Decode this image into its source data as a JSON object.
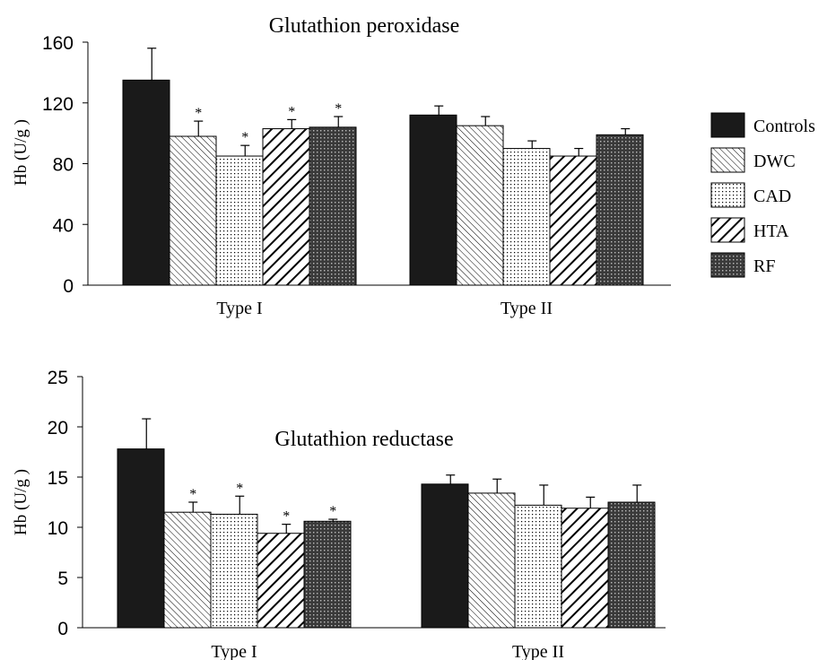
{
  "legend": {
    "items": [
      {
        "name": "Controls",
        "pattern": "solid"
      },
      {
        "name": "DWC",
        "pattern": "diag-fine-right"
      },
      {
        "name": "CAD",
        "pattern": "dots"
      },
      {
        "name": "HTA",
        "pattern": "diag-bold-left"
      },
      {
        "name": "RF",
        "pattern": "crosshatch"
      }
    ]
  },
  "colors": {
    "ink": "#000000",
    "dark_bar": "#1a1a1a",
    "background": "#ffffff"
  },
  "chart_data": [
    {
      "type": "bar",
      "title": "Glutathion peroxidase",
      "ylabel": "Hb (U/g )",
      "xlabel": "",
      "categories": [
        "Type I",
        "Type II"
      ],
      "ylim": [
        0,
        160
      ],
      "yticks": [
        "0",
        "40",
        "80",
        "120",
        "160"
      ],
      "grid": false,
      "legend_position": "right",
      "series": [
        {
          "name": "Controls",
          "values": [
            135,
            112
          ],
          "errors": [
            21,
            6
          ],
          "significant": [
            false,
            false
          ]
        },
        {
          "name": "DWC",
          "values": [
            98,
            105
          ],
          "errors": [
            10,
            6
          ],
          "significant": [
            true,
            false
          ]
        },
        {
          "name": "CAD",
          "values": [
            85,
            90
          ],
          "errors": [
            7,
            5
          ],
          "significant": [
            true,
            false
          ]
        },
        {
          "name": "HTA",
          "values": [
            103,
            85
          ],
          "errors": [
            6,
            5
          ],
          "significant": [
            true,
            false
          ]
        },
        {
          "name": "RF",
          "values": [
            104,
            99
          ],
          "errors": [
            7,
            4
          ],
          "significant": [
            true,
            false
          ]
        }
      ],
      "annotation_symbol": "*"
    },
    {
      "type": "bar",
      "title": "Glutathion reductase",
      "ylabel": "Hb (U/g )",
      "xlabel": "",
      "categories": [
        "Type I",
        "Type II"
      ],
      "ylim": [
        0,
        25
      ],
      "yticks": [
        "0",
        "5",
        "10",
        "15",
        "20",
        "25"
      ],
      "grid": false,
      "series": [
        {
          "name": "Controls",
          "values": [
            17.8,
            14.3
          ],
          "errors": [
            3.0,
            0.9
          ],
          "significant": [
            false,
            false
          ]
        },
        {
          "name": "DWC",
          "values": [
            11.5,
            13.4
          ],
          "errors": [
            1.0,
            1.4
          ],
          "significant": [
            true,
            false
          ]
        },
        {
          "name": "CAD",
          "values": [
            11.3,
            12.2
          ],
          "errors": [
            1.8,
            2.0
          ],
          "significant": [
            true,
            false
          ]
        },
        {
          "name": "HTA",
          "values": [
            9.4,
            11.9
          ],
          "errors": [
            0.9,
            1.1
          ],
          "significant": [
            true,
            false
          ]
        },
        {
          "name": "RF",
          "values": [
            10.6,
            12.5
          ],
          "errors": [
            0.2,
            1.7
          ],
          "significant": [
            true,
            false
          ]
        }
      ],
      "annotation_symbol": "*"
    }
  ]
}
